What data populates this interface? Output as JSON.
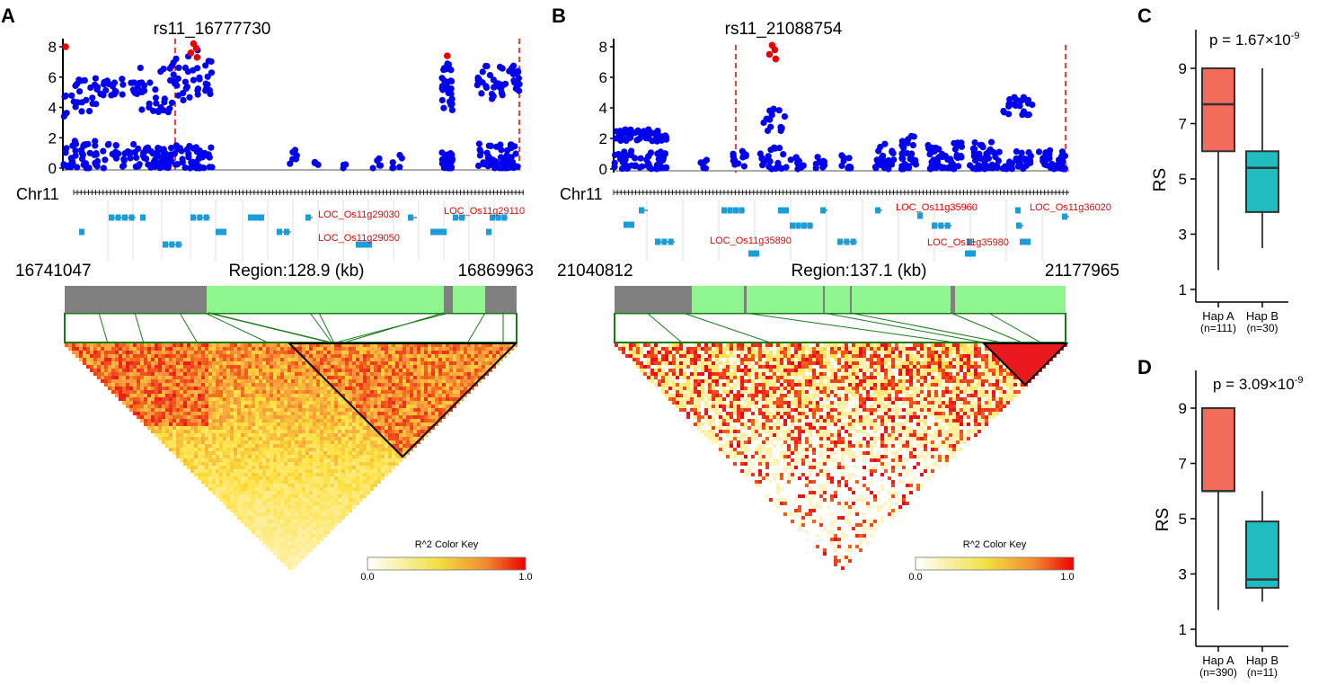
{
  "chart_data": [
    {
      "panel": "A",
      "type": "scatter",
      "title": "rs11_16777730",
      "chromosome_label": "Chr11",
      "ylim": [
        0,
        8
      ],
      "yticks": [
        "0",
        "2",
        "4",
        "6",
        "8"
      ],
      "region_start": "16741047",
      "region_end": "16869963",
      "region_label": "Region:128.9 (kb)",
      "lead_snp_position_kb": 36.7,
      "peak_value": 8.2,
      "clusters": [
        {
          "from_kb": 0,
          "to_kb": 10,
          "low_max": 1.8,
          "high_min": 3.2,
          "high_max": 6.0,
          "n": 70
        },
        {
          "from_kb": 10,
          "to_kb": 21,
          "low_max": 1.6,
          "high_min": 4.8,
          "high_max": 6.0,
          "n": 50
        },
        {
          "from_kb": 21,
          "to_kb": 30,
          "low_max": 1.6,
          "high_min": 3.6,
          "high_max": 6.8,
          "n": 70
        },
        {
          "from_kb": 30,
          "to_kb": 42,
          "low_max": 1.5,
          "high_min": 4.2,
          "high_max": 8.0,
          "n": 90
        },
        {
          "from_kb": 64,
          "to_kb": 66,
          "low_max": 1.6,
          "n": 6
        },
        {
          "from_kb": 71,
          "to_kb": 73,
          "low_max": 1.0,
          "n": 4
        },
        {
          "from_kb": 79,
          "to_kb": 80,
          "low_max": 0.6,
          "n": 3
        },
        {
          "from_kb": 86,
          "to_kb": 90,
          "low_max": 0.8,
          "n": 5
        },
        {
          "from_kb": 93,
          "to_kb": 96,
          "low_max": 0.9,
          "n": 6
        },
        {
          "from_kb": 107,
          "to_kb": 110,
          "low_max": 1.2,
          "high_min": 3.8,
          "high_max": 7.0,
          "n": 60
        },
        {
          "from_kb": 117,
          "to_kb": 129,
          "low_max": 1.6,
          "high_min": 4.5,
          "high_max": 6.8,
          "n": 100
        }
      ],
      "genes": [
        "LOC_Os11g29030",
        "LOC_Os11g29050",
        "LOC_Os11g29110"
      ],
      "color_key_title": "R^2 Color Key",
      "color_key_min": "0.0",
      "color_key_max": "1.0"
    },
    {
      "panel": "B",
      "type": "scatter",
      "title": "rs11_21088754",
      "chromosome_label": "Chr11",
      "ylim": [
        0,
        8
      ],
      "yticks": [
        "0",
        "2",
        "4",
        "6",
        "8"
      ],
      "region_start": "21040812",
      "region_end": "21177965",
      "region_label": "Region:137.1 (kb)",
      "lead_snp_position_kb": 47.9,
      "peak_value": 8.1,
      "clusters": [
        {
          "from_kb": 0,
          "to_kb": 16,
          "low_max": 1.2,
          "high_min": 1.8,
          "high_max": 2.6,
          "n": 110
        },
        {
          "from_kb": 26,
          "to_kb": 28,
          "low_max": 1.0,
          "n": 6
        },
        {
          "from_kb": 36,
          "to_kb": 40,
          "low_max": 1.2,
          "n": 12
        },
        {
          "from_kb": 44,
          "to_kb": 52,
          "low_max": 1.5,
          "high_min": 2.5,
          "high_max": 4.2,
          "n": 35
        },
        {
          "from_kb": 52,
          "to_kb": 58,
          "low_max": 0.8,
          "n": 12
        },
        {
          "from_kb": 61,
          "to_kb": 64,
          "low_max": 0.8,
          "n": 10
        },
        {
          "from_kb": 69,
          "to_kb": 72,
          "low_max": 1.0,
          "n": 10
        },
        {
          "from_kb": 79,
          "to_kb": 85,
          "low_max": 1.8,
          "n": 25
        },
        {
          "from_kb": 87,
          "to_kb": 92,
          "low_max": 2.2,
          "n": 30
        },
        {
          "from_kb": 95,
          "to_kb": 106,
          "low_max": 1.8,
          "n": 50
        },
        {
          "from_kb": 108,
          "to_kb": 117,
          "low_max": 1.8,
          "n": 45
        },
        {
          "from_kb": 118,
          "to_kb": 127,
          "low_max": 1.2,
          "high_min": 3.5,
          "high_max": 4.7,
          "n": 55
        },
        {
          "from_kb": 129,
          "to_kb": 137,
          "low_max": 1.3,
          "n": 35
        }
      ],
      "genes": [
        "LOC_Os11g35890",
        "LOC_Os11g35960",
        "LOC_Os11g35980",
        "LOC_Os11g36020"
      ],
      "color_key_title": "R^2 Color Key",
      "color_key_min": "0.0",
      "color_key_max": "1.0"
    },
    {
      "panel": "C",
      "type": "box",
      "p_label": "p = 1.67×10",
      "p_exponent": "-9",
      "ylabel": "RS",
      "ylim": [
        0.5,
        10
      ],
      "yticks": [
        "1",
        "3",
        "5",
        "7",
        "9"
      ],
      "groups": [
        {
          "name": "Hap A",
          "n_label": "(n=111)",
          "min": 1.7,
          "q1": 6.0,
          "median": 7.7,
          "q3": 9.0,
          "max": 9.0,
          "color": "#f26b5b"
        },
        {
          "name": "Hap B",
          "n_label": "(n=30)",
          "min": 2.5,
          "q1": 3.8,
          "median": 5.4,
          "q3": 6.0,
          "max": 9.0,
          "color": "#1fbcc0"
        }
      ]
    },
    {
      "panel": "D",
      "type": "box",
      "p_label": "p = 3.09×10",
      "p_exponent": "-9",
      "ylabel": "RS",
      "ylim": [
        0.5,
        10
      ],
      "yticks": [
        "1",
        "3",
        "5",
        "7",
        "9"
      ],
      "groups": [
        {
          "name": "Hap A",
          "n_label": "(n=390)",
          "min": 1.7,
          "q1": 6.0,
          "median": 6.0,
          "q3": 9.0,
          "max": 9.0,
          "color": "#f26b5b"
        },
        {
          "name": "Hap B",
          "n_label": "(n=11)",
          "min": 2.0,
          "q1": 2.5,
          "median": 2.8,
          "q3": 4.9,
          "max": 6.0,
          "color": "#1fbcc0"
        }
      ]
    }
  ],
  "colors": {
    "snp": "#0000ee",
    "lead_snp": "#ee0000",
    "gene": "#1a9ed9",
    "gene_label": "#ee0000",
    "ld_bar_green": "#8ff58f",
    "ld_bar_gray": "#808080",
    "ld_lines": "#1a7a1a",
    "threshold_line": "#ee0000"
  }
}
